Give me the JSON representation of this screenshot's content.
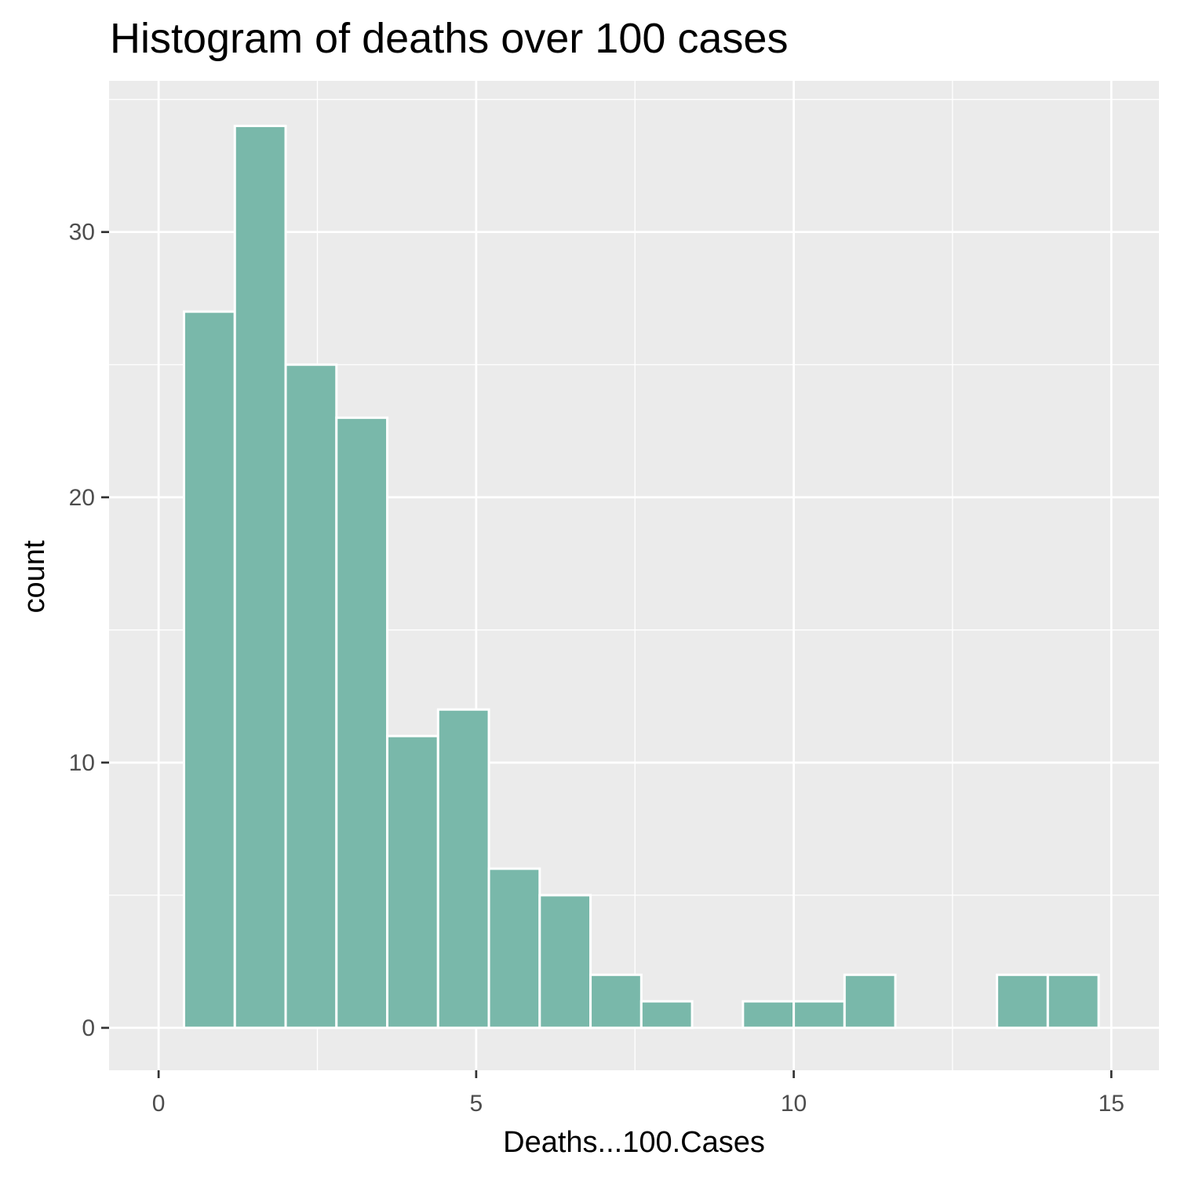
{
  "chart_data": {
    "type": "bar",
    "title": "Histogram of deaths over 100 cases",
    "xlabel": "Deaths...100.Cases",
    "ylabel": "count",
    "xlim": [
      -0.78,
      15.75
    ],
    "ylim": [
      -1.6,
      35.7
    ],
    "x_ticks": [
      0,
      5,
      10,
      15
    ],
    "x_tick_labels": [
      "0",
      "5",
      "10",
      "15"
    ],
    "y_ticks": [
      0,
      10,
      20,
      30
    ],
    "y_tick_labels": [
      "0",
      "10",
      "20",
      "30"
    ],
    "x_minor_ticks": [
      2.5,
      7.5,
      12.5
    ],
    "y_minor_ticks": [
      5,
      15,
      25,
      35
    ],
    "grid": true,
    "legend": "none",
    "bar_color": "#79b8aa",
    "panel_background": "#ebebeb",
    "grid_color": "#ffffff",
    "bins": [
      {
        "x0": 0.4,
        "x1": 1.2,
        "count": 27
      },
      {
        "x0": 1.2,
        "x1": 2.0,
        "count": 34
      },
      {
        "x0": 2.0,
        "x1": 2.8,
        "count": 25
      },
      {
        "x0": 2.8,
        "x1": 3.6,
        "count": 23
      },
      {
        "x0": 3.6,
        "x1": 4.4,
        "count": 11
      },
      {
        "x0": 4.4,
        "x1": 5.2,
        "count": 12
      },
      {
        "x0": 5.2,
        "x1": 6.0,
        "count": 6
      },
      {
        "x0": 6.0,
        "x1": 6.8,
        "count": 5
      },
      {
        "x0": 6.8,
        "x1": 7.6,
        "count": 2
      },
      {
        "x0": 7.6,
        "x1": 8.4,
        "count": 1
      },
      {
        "x0": 8.4,
        "x1": 9.2,
        "count": 0
      },
      {
        "x0": 9.2,
        "x1": 10.0,
        "count": 1
      },
      {
        "x0": 10.0,
        "x1": 10.8,
        "count": 1
      },
      {
        "x0": 10.8,
        "x1": 11.6,
        "count": 2
      },
      {
        "x0": 11.6,
        "x1": 12.4,
        "count": 0
      },
      {
        "x0": 12.4,
        "x1": 13.2,
        "count": 0
      },
      {
        "x0": 13.2,
        "x1": 14.0,
        "count": 2
      },
      {
        "x0": 14.0,
        "x1": 14.8,
        "count": 2
      }
    ]
  }
}
